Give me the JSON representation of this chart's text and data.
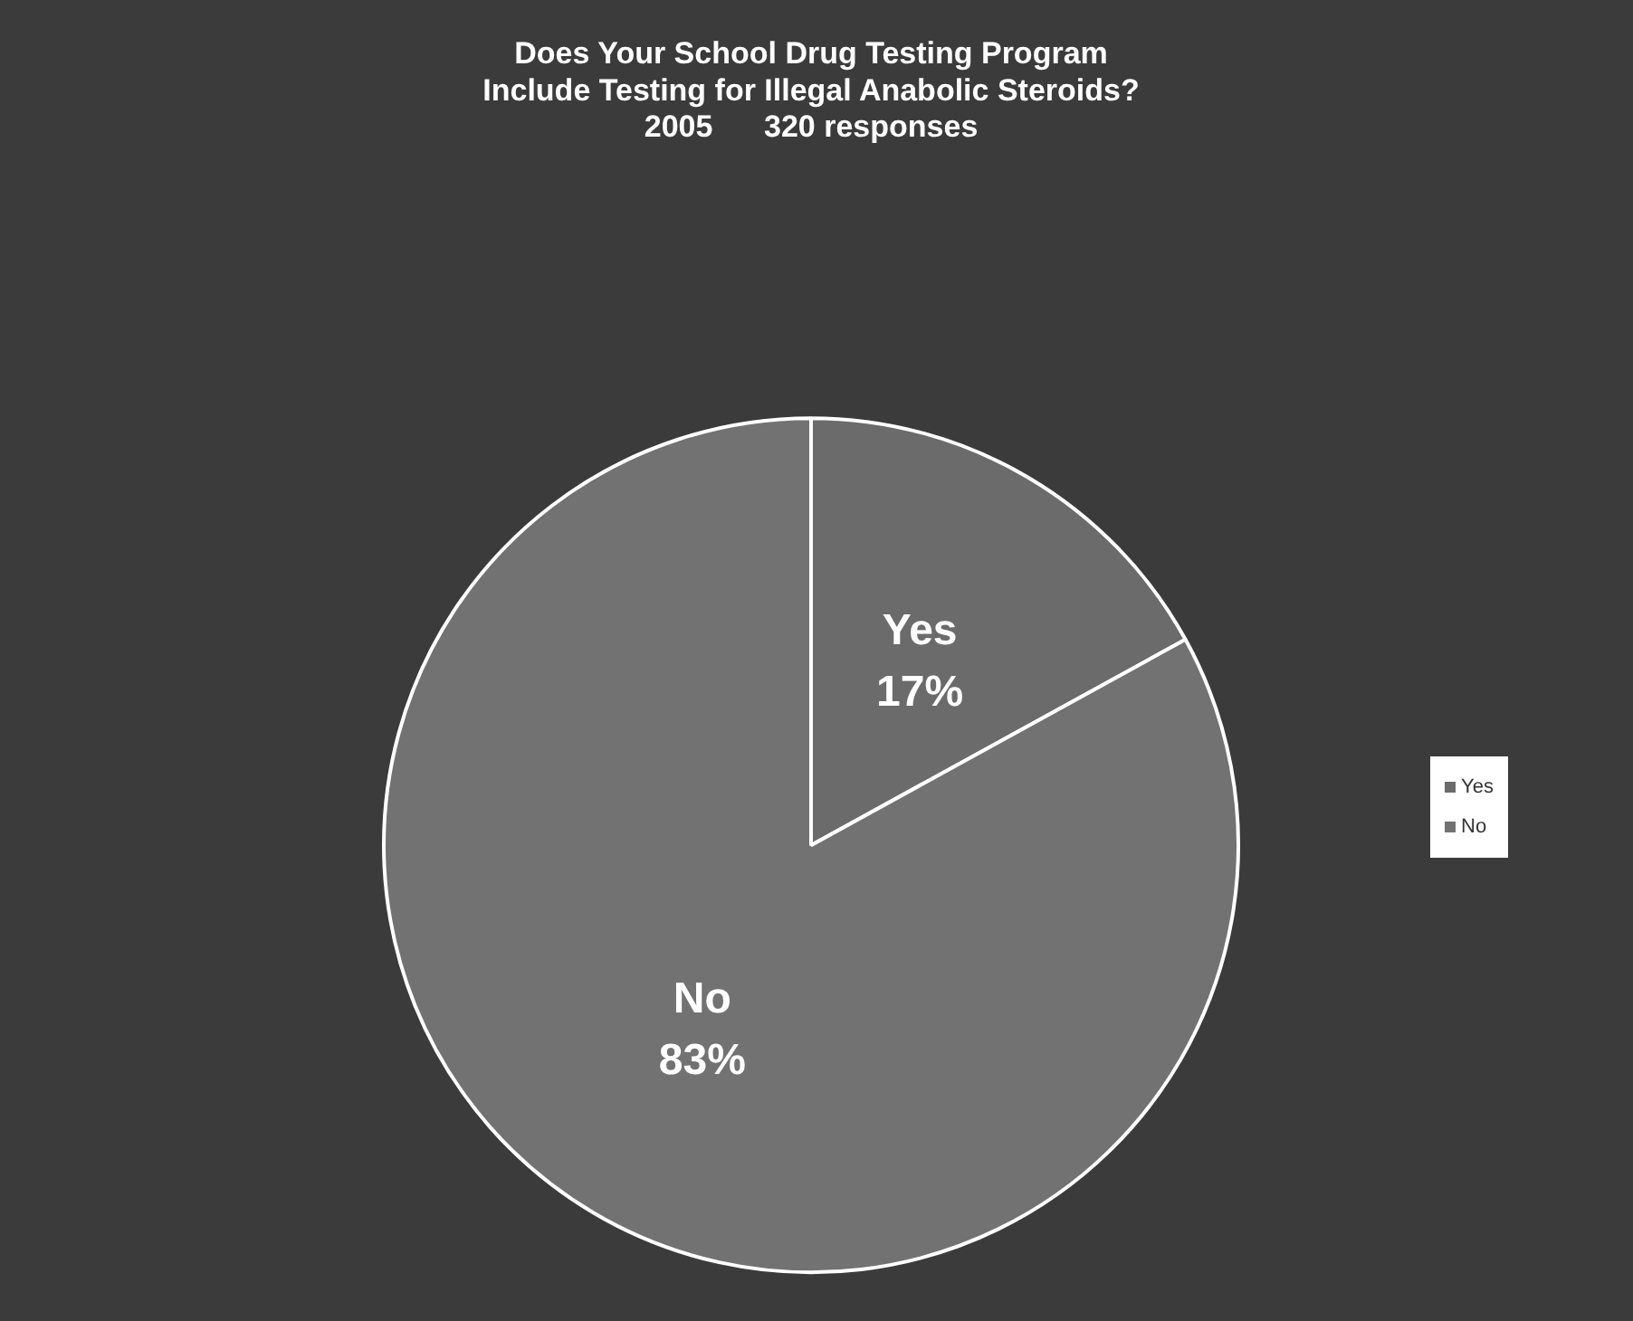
{
  "chart_data": {
    "type": "pie",
    "title": "Does Your School Drug Testing Program\nInclude Testing for Illegal Anabolic Steroids?",
    "subtitle": "2005      320 responses",
    "categories": [
      "Yes",
      "No"
    ],
    "values": [
      17,
      83
    ],
    "colors": [
      "#6b6b6b",
      "#727272"
    ],
    "value_labels": [
      "17%",
      "83%"
    ],
    "legend": "right"
  }
}
